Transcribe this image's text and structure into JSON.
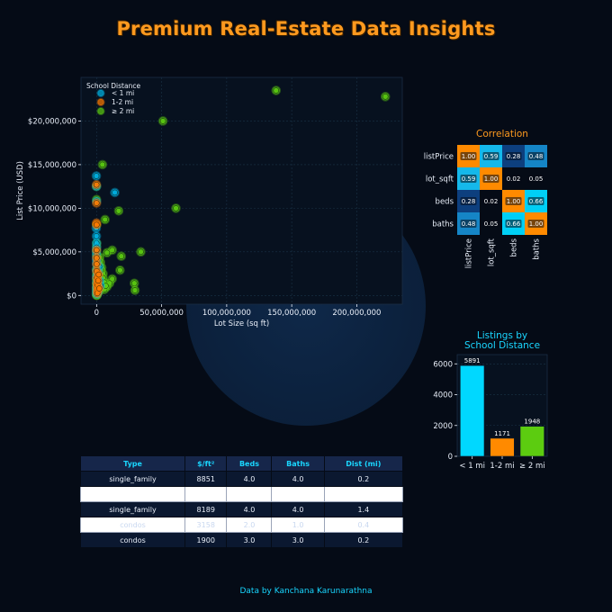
{
  "page": {
    "title": "Premium Real-Estate Data Insights",
    "credit": "Data by Kanchana Karunarathna"
  },
  "colors": {
    "background": "#050b16",
    "panel": "#07111f",
    "cyan": "#00d4ff",
    "orange": "#ff8a00",
    "green": "#5ccc10",
    "navy": "#0b2a5c",
    "title": "#ff9a1f"
  },
  "chart_data": [
    {
      "type": "scatter",
      "xlabel": "Lot Size (sq ft)",
      "ylabel": "List Price (USD)",
      "xlim": [
        -12000000,
        235000000
      ],
      "ylim": [
        -1000000,
        25000000
      ],
      "x_ticks": [
        0,
        50000000,
        100000000,
        150000000,
        200000000
      ],
      "x_tick_labels": [
        "0",
        "50,000,000",
        "100,000,000",
        "150,000,000",
        "200,000,000"
      ],
      "y_ticks": [
        0,
        5000000,
        10000000,
        15000000,
        20000000
      ],
      "y_tick_labels": [
        "$0",
        "$5,000,000",
        "$10,000,000",
        "$15,000,000",
        "$20,000,000"
      ],
      "grid": true,
      "legend": {
        "title": "School Distance",
        "position": "top-left",
        "entries": [
          "< 1 mi",
          "1-2 mi",
          "≥ 2 mi"
        ]
      },
      "series": [
        {
          "name": "< 1 mi",
          "color": "#00b4e6",
          "points": [
            [
              -200000,
              13700000
            ],
            [
              -100000,
              12500000
            ],
            [
              -50000,
              10800000
            ],
            [
              14000000,
              11800000
            ],
            [
              -100000,
              6000000
            ],
            [
              -50000,
              5500000
            ],
            [
              -80000,
              4200000
            ],
            [
              -60000,
              3600000
            ],
            [
              -40000,
              2800000
            ],
            [
              -30000,
              2100000
            ],
            [
              -20000,
              1500000
            ],
            [
              -10000,
              1000000
            ],
            [
              0,
              600000
            ],
            [
              100000,
              300000
            ],
            [
              200000,
              150000
            ],
            [
              300000,
              450000
            ],
            [
              500000,
              900000
            ],
            [
              800000,
              1300000
            ],
            [
              1000000,
              2000000
            ],
            [
              1500000,
              2600000
            ],
            [
              2000000,
              3300000
            ],
            [
              2500000,
              1700000
            ],
            [
              3000000,
              1100000
            ],
            [
              -300000,
              7700000
            ],
            [
              -150000,
              6800000
            ],
            [
              -120000,
              5100000
            ],
            [
              -100000,
              4700000
            ],
            [
              50000,
              3900000
            ],
            [
              150000,
              3000000
            ],
            [
              400000,
              2300000
            ],
            [
              700000,
              1800000
            ],
            [
              900000,
              700000
            ],
            [
              1200000,
              400000
            ]
          ]
        },
        {
          "name": "1-2 mi",
          "color": "#ff7a00",
          "points": [
            [
              -100000,
              12700000
            ],
            [
              -50000,
              10600000
            ],
            [
              -80000,
              8300000
            ],
            [
              0,
              8100000
            ],
            [
              -30000,
              5200000
            ],
            [
              0,
              4300000
            ],
            [
              50000,
              3600000
            ],
            [
              100000,
              2800000
            ],
            [
              200000,
              2000000
            ],
            [
              300000,
              1400000
            ],
            [
              400000,
              900000
            ],
            [
              500000,
              500000
            ],
            [
              600000,
              250000
            ],
            [
              800000,
              1200000
            ],
            [
              1200000,
              1700000
            ],
            [
              1600000,
              2400000
            ],
            [
              2000000,
              800000
            ]
          ]
        },
        {
          "name": "≥ 2 mi",
          "color": "#5ccc10",
          "points": [
            [
              138000000,
              23500000
            ],
            [
              222000000,
              22800000
            ],
            [
              51000000,
              20000000
            ],
            [
              4500000,
              15000000
            ],
            [
              61000000,
              10000000
            ],
            [
              17000000,
              9700000
            ],
            [
              6500000,
              8700000
            ],
            [
              -100000,
              12500000
            ],
            [
              -50000,
              11000000
            ],
            [
              0,
              8100000
            ],
            [
              34000000,
              5000000
            ],
            [
              19000000,
              4500000
            ],
            [
              12000000,
              5200000
            ],
            [
              8000000,
              4900000
            ],
            [
              29000000,
              1400000
            ],
            [
              29500000,
              600000
            ],
            [
              18000000,
              2900000
            ],
            [
              12000000,
              1900000
            ],
            [
              10000000,
              1400000
            ],
            [
              8000000,
              1000000
            ],
            [
              6000000,
              700000
            ],
            [
              5000000,
              2500000
            ],
            [
              4000000,
              3200000
            ],
            [
              3000000,
              3800000
            ],
            [
              2500000,
              4400000
            ],
            [
              2000000,
              1600000
            ],
            [
              1500000,
              1200000
            ],
            [
              1200000,
              900000
            ],
            [
              1000000,
              600000
            ],
            [
              800000,
              400000
            ],
            [
              600000,
              200000
            ],
            [
              400000,
              100000
            ],
            [
              200000,
              50000
            ],
            [
              0,
              0
            ],
            [
              -200000,
              200000
            ],
            [
              -100000,
              500000
            ],
            [
              0,
              900000
            ],
            [
              100000,
              1300000
            ],
            [
              300000,
              1800000
            ],
            [
              500000,
              2300000
            ],
            [
              700000,
              2700000
            ],
            [
              900000,
              3100000
            ],
            [
              1100000,
              3500000
            ],
            [
              1300000,
              4000000
            ],
            [
              -50000,
              4600000
            ],
            [
              -30000,
              5100000
            ],
            [
              0,
              5600000
            ],
            [
              100000,
              6000000
            ],
            [
              -150000,
              3000000
            ],
            [
              -100000,
              2400000
            ],
            [
              -80000,
              1900000
            ],
            [
              -60000,
              1400000
            ],
            [
              -40000,
              800000
            ],
            [
              2200000,
              500000
            ],
            [
              2800000,
              900000
            ],
            [
              3500000,
              1300000
            ],
            [
              4200000,
              1700000
            ],
            [
              5000000,
              2000000
            ],
            [
              6000000,
              1500000
            ],
            [
              7000000,
              1100000
            ],
            [
              3300000,
              2900000
            ],
            [
              2000000,
              3400000
            ]
          ]
        }
      ]
    },
    {
      "type": "heatmap",
      "title": "Correlation",
      "labels": [
        "listPrice",
        "lot_sqft",
        "beds",
        "baths"
      ],
      "values": [
        [
          1.0,
          0.59,
          0.28,
          0.48
        ],
        [
          0.59,
          1.0,
          0.02,
          0.05
        ],
        [
          0.28,
          0.02,
          1.0,
          0.66
        ],
        [
          0.48,
          0.05,
          0.66,
          1.0
        ]
      ],
      "value_labels": [
        [
          "1.00",
          "0.59",
          "0.28",
          "0.48"
        ],
        [
          "0.59",
          "1.00",
          "0.02",
          "0.05"
        ],
        [
          "0.28",
          "0.02",
          "1.00",
          "0.66"
        ],
        [
          "0.48",
          "0.05",
          "0.66",
          "1.00"
        ]
      ]
    },
    {
      "type": "bar",
      "title": "Listings by School Distance",
      "title_lines": [
        "Listings by",
        "School Distance"
      ],
      "categories": [
        "< 1 mi",
        "1-2 mi",
        "≥ 2 mi"
      ],
      "values": [
        5891,
        1171,
        1948
      ],
      "value_labels": [
        "5891",
        "1171",
        "1948"
      ],
      "colors": [
        "#00d8ff",
        "#ff8a00",
        "#5ccc10"
      ],
      "ylim": [
        0,
        6600
      ],
      "y_ticks": [
        0,
        2000,
        4000,
        6000
      ],
      "y_tick_labels": [
        "0",
        "2000",
        "4000",
        "6000"
      ]
    },
    {
      "type": "table",
      "columns": [
        "Type",
        "$/ft²",
        "Beds",
        "Baths",
        "Dist (mi)"
      ],
      "rows": [
        {
          "style": "dark",
          "cells": [
            "single_family",
            "8851",
            "4.0",
            "4.0",
            "0.2"
          ]
        },
        {
          "style": "light",
          "cells": [
            "",
            "",
            "",
            "",
            ""
          ]
        },
        {
          "style": "dark",
          "cells": [
            "single_family",
            "8189",
            "4.0",
            "4.0",
            "1.4"
          ]
        },
        {
          "style": "lightfaint",
          "cells": [
            "condos",
            "3158",
            "2.0",
            "1.0",
            "0.4"
          ]
        },
        {
          "style": "dark",
          "cells": [
            "condos",
            "1900",
            "3.0",
            "3.0",
            "0.2"
          ]
        }
      ]
    }
  ]
}
